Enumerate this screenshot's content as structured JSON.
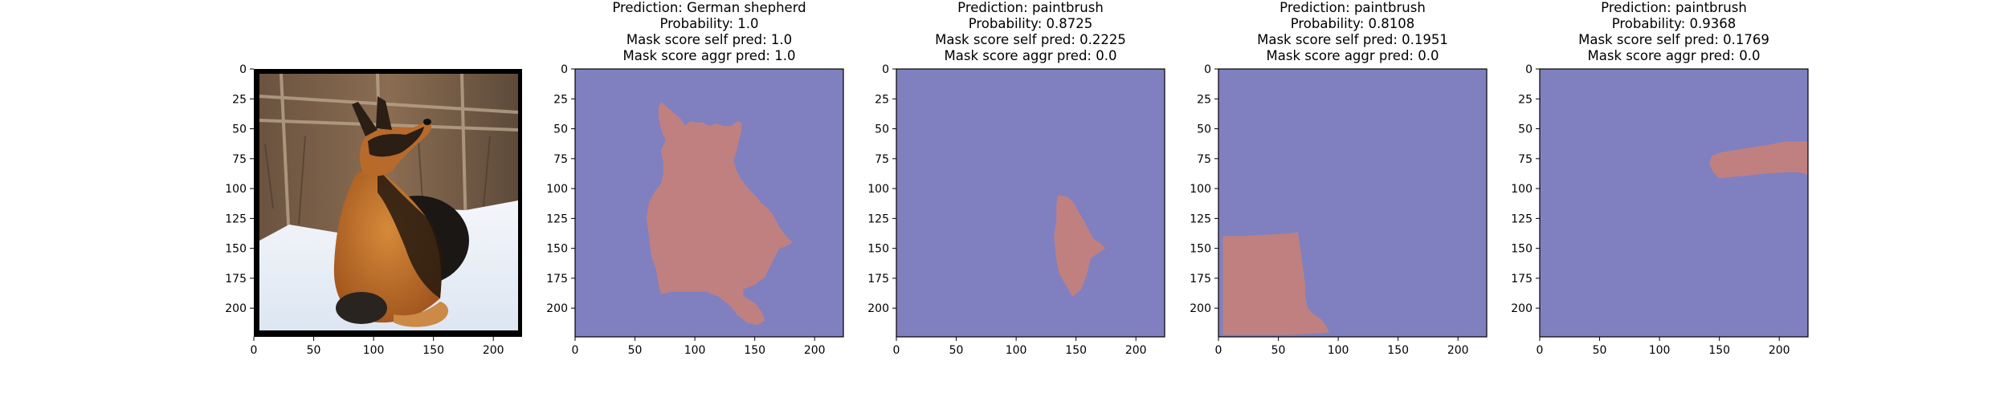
{
  "colors": {
    "mask_background": "#8080c0",
    "mask_foreground": "#c08080",
    "axis": "#000000",
    "background": "#ffffff"
  },
  "chart_data": [
    {
      "type": "image",
      "image": "German shepherd photo (lying in snow, wooden fence behind)",
      "title_lines": [],
      "xticks": [
        0,
        50,
        100,
        150,
        200
      ],
      "yticks": [
        0,
        25,
        50,
        75,
        100,
        125,
        150,
        175,
        200
      ],
      "xlim": [
        0,
        224
      ],
      "ylim": [
        224,
        0
      ]
    },
    {
      "type": "heatmap",
      "image": "segmentation mask",
      "title_lines": [
        "Prediction: German shepherd",
        "Probability: 1.0",
        "Mask score self pred: 1.0",
        "Mask score aggr pred: 1.0"
      ],
      "prediction": "German shepherd",
      "probability": 1.0,
      "mask_score_self_pred": 1.0,
      "mask_score_aggr_pred": 1.0,
      "mask_polygon": [
        [
          72,
          28
        ],
        [
          80,
          35
        ],
        [
          88,
          42
        ],
        [
          92,
          48
        ],
        [
          96,
          44
        ],
        [
          100,
          45
        ],
        [
          106,
          45
        ],
        [
          112,
          48
        ],
        [
          118,
          46
        ],
        [
          124,
          48
        ],
        [
          130,
          48
        ],
        [
          136,
          44
        ],
        [
          139,
          46
        ],
        [
          138,
          54
        ],
        [
          136,
          62
        ],
        [
          134,
          70
        ],
        [
          132,
          76
        ],
        [
          134,
          84
        ],
        [
          138,
          92
        ],
        [
          144,
          100
        ],
        [
          150,
          106
        ],
        [
          155,
          112
        ],
        [
          160,
          116
        ],
        [
          165,
          122
        ],
        [
          170,
          132
        ],
        [
          176,
          140
        ],
        [
          181,
          145
        ],
        [
          176,
          148
        ],
        [
          170,
          150
        ],
        [
          166,
          158
        ],
        [
          162,
          166
        ],
        [
          158,
          174
        ],
        [
          150,
          180
        ],
        [
          140,
          184
        ],
        [
          140,
          190
        ],
        [
          150,
          196
        ],
        [
          156,
          204
        ],
        [
          158,
          210
        ],
        [
          152,
          214
        ],
        [
          144,
          212
        ],
        [
          136,
          206
        ],
        [
          130,
          198
        ],
        [
          120,
          190
        ],
        [
          110,
          186
        ],
        [
          100,
          186
        ],
        [
          90,
          186
        ],
        [
          80,
          186
        ],
        [
          72,
          188
        ],
        [
          70,
          180
        ],
        [
          68,
          168
        ],
        [
          64,
          156
        ],
        [
          62,
          140
        ],
        [
          60,
          124
        ],
        [
          62,
          112
        ],
        [
          66,
          104
        ],
        [
          72,
          96
        ],
        [
          74,
          88
        ],
        [
          74,
          78
        ],
        [
          72,
          68
        ],
        [
          76,
          60
        ],
        [
          72,
          50
        ],
        [
          70,
          40
        ],
        [
          70,
          32
        ]
      ],
      "xticks": [
        0,
        50,
        100,
        150,
        200
      ],
      "yticks": [
        0,
        25,
        50,
        75,
        100,
        125,
        150,
        175,
        200
      ],
      "xlim": [
        0,
        224
      ],
      "ylim": [
        224,
        0
      ]
    },
    {
      "type": "heatmap",
      "image": "segmentation mask",
      "title_lines": [
        "Prediction: paintbrush",
        "Probability: 0.8725",
        "Mask score self pred: 0.2225",
        "Mask score aggr pred: 0.0"
      ],
      "prediction": "paintbrush",
      "probability": 0.8725,
      "mask_score_self_pred": 0.2225,
      "mask_score_aggr_pred": 0.0,
      "mask_polygon": [
        [
          135,
          106
        ],
        [
          142,
          107
        ],
        [
          148,
          112
        ],
        [
          152,
          120
        ],
        [
          157,
          128
        ],
        [
          161,
          136
        ],
        [
          164,
          142
        ],
        [
          170,
          146
        ],
        [
          174,
          150
        ],
        [
          168,
          154
        ],
        [
          162,
          158
        ],
        [
          160,
          166
        ],
        [
          158,
          174
        ],
        [
          154,
          184
        ],
        [
          147,
          190
        ],
        [
          144,
          184
        ],
        [
          140,
          178
        ],
        [
          136,
          170
        ],
        [
          134,
          160
        ],
        [
          133,
          150
        ],
        [
          132,
          140
        ],
        [
          134,
          126
        ],
        [
          134,
          114
        ]
      ],
      "xticks": [
        0,
        50,
        100,
        150,
        200
      ],
      "yticks": [
        0,
        25,
        50,
        75,
        100,
        125,
        150,
        175,
        200
      ],
      "xlim": [
        0,
        224
      ],
      "ylim": [
        224,
        0
      ]
    },
    {
      "type": "heatmap",
      "image": "segmentation mask",
      "title_lines": [
        "Prediction: paintbrush",
        "Probability: 0.8108",
        "Mask score self pred: 0.1951",
        "Mask score aggr pred: 0.0"
      ],
      "prediction": "paintbrush",
      "probability": 0.8108,
      "mask_score_self_pred": 0.1951,
      "mask_score_aggr_pred": 0.0,
      "mask_polygon": [
        [
          4,
          140
        ],
        [
          20,
          140
        ],
        [
          40,
          139
        ],
        [
          58,
          138
        ],
        [
          66,
          137
        ],
        [
          68,
          150
        ],
        [
          70,
          165
        ],
        [
          72,
          180
        ],
        [
          72,
          190
        ],
        [
          74,
          200
        ],
        [
          80,
          206
        ],
        [
          86,
          210
        ],
        [
          90,
          216
        ],
        [
          92,
          220
        ],
        [
          80,
          221
        ],
        [
          60,
          222
        ],
        [
          40,
          222
        ],
        [
          20,
          222
        ],
        [
          4,
          222
        ],
        [
          4,
          200
        ],
        [
          4,
          180
        ],
        [
          4,
          160
        ]
      ],
      "xticks": [
        0,
        50,
        100,
        150,
        200
      ],
      "yticks": [
        0,
        25,
        50,
        75,
        100,
        125,
        150,
        175,
        200
      ],
      "xlim": [
        0,
        224
      ],
      "ylim": [
        224,
        0
      ]
    },
    {
      "type": "heatmap",
      "image": "segmentation mask",
      "title_lines": [
        "Prediction: paintbrush",
        "Probability: 0.9368",
        "Mask score self pred: 0.1769",
        "Mask score aggr pred: 0.0"
      ],
      "prediction": "paintbrush",
      "probability": 0.9368,
      "mask_score_self_pred": 0.1769,
      "mask_score_aggr_pred": 0.0,
      "mask_polygon": [
        [
          152,
          70
        ],
        [
          170,
          67
        ],
        [
          190,
          64
        ],
        [
          205,
          61
        ],
        [
          215,
          61
        ],
        [
          224,
          61
        ],
        [
          224,
          88
        ],
        [
          216,
          86
        ],
        [
          205,
          86
        ],
        [
          190,
          87
        ],
        [
          170,
          89
        ],
        [
          150,
          91
        ],
        [
          145,
          86
        ],
        [
          142,
          79
        ],
        [
          144,
          73
        ]
      ],
      "xticks": [
        0,
        50,
        100,
        150,
        200
      ],
      "yticks": [
        0,
        25,
        50,
        75,
        100,
        125,
        150,
        175,
        200
      ],
      "xlim": [
        0,
        224
      ],
      "ylim": [
        224,
        0
      ]
    }
  ]
}
